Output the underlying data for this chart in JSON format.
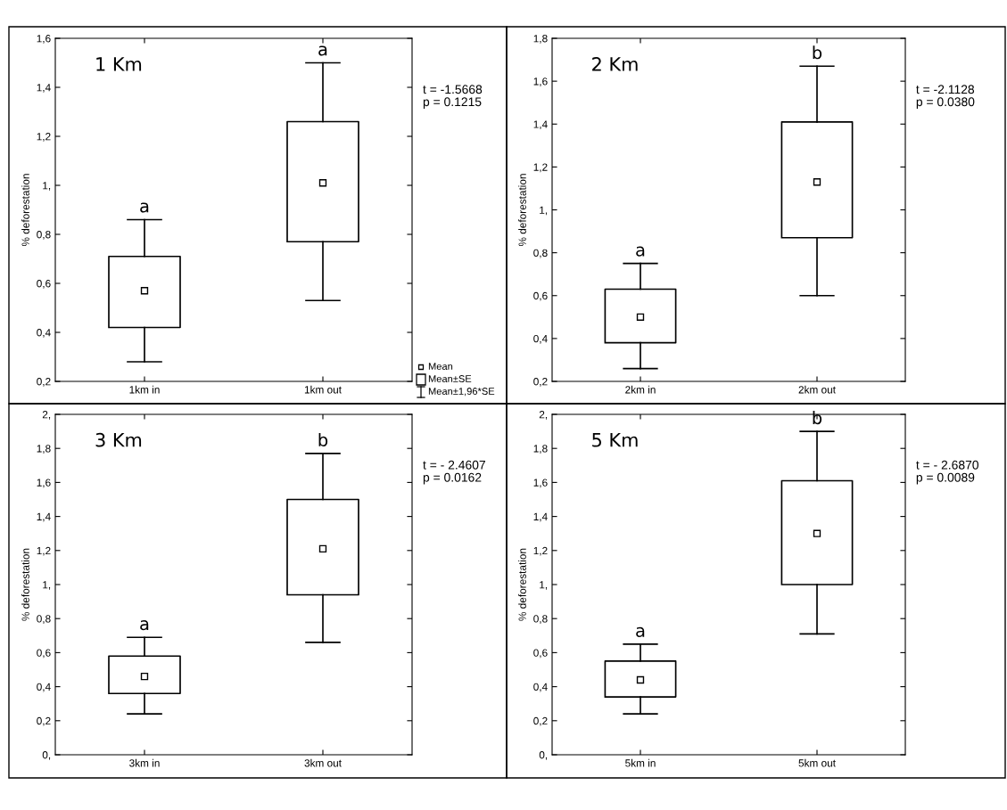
{
  "chart_data": [
    {
      "type": "box",
      "title": "1 Km",
      "ylabel": "% deforestation",
      "categories": [
        "1km in",
        "1km out"
      ],
      "boxes": [
        {
          "low": 0.28,
          "q1": 0.42,
          "mean": 0.57,
          "q3": 0.71,
          "high": 0.86
        },
        {
          "low": 0.53,
          "q1": 0.77,
          "mean": 1.01,
          "q3": 1.26,
          "high": 1.5
        }
      ],
      "ylim": [
        0.2,
        1.6
      ],
      "yticks": [
        {
          "value": 0.2,
          "label": "0,2"
        },
        {
          "value": 0.4,
          "label": "0,4"
        },
        {
          "value": 0.6,
          "label": "0,6"
        },
        {
          "value": 0.8,
          "label": "0,8"
        },
        {
          "value": 1,
          "label": "1,"
        },
        {
          "value": 1.2,
          "label": "1,2"
        },
        {
          "value": 1.4,
          "label": "1,4"
        },
        {
          "value": 1.6,
          "label": "1,6"
        }
      ],
      "annotations": [
        {
          "text": "a",
          "x": "1km in",
          "y": 0.86
        },
        {
          "text": "a",
          "x": "1km out",
          "y": 1.5
        },
        "t = -1.5668\np = 0.1215",
        "Mean",
        "Mean±SE",
        "Mean±1,96*SE"
      ]
    },
    {
      "type": "box",
      "title": "2 Km",
      "ylabel": "% deforestation",
      "categories": [
        "2km in",
        "2km out"
      ],
      "boxes": [
        {
          "low": 0.26,
          "q1": 0.38,
          "mean": 0.5,
          "q3": 0.63,
          "high": 0.75
        },
        {
          "low": 0.6,
          "q1": 0.87,
          "mean": 1.13,
          "q3": 1.41,
          "high": 1.67
        }
      ],
      "ylim": [
        0.2,
        1.8
      ],
      "yticks": [
        {
          "value": 0.2,
          "label": "0,2"
        },
        {
          "value": 0.4,
          "label": "0,4"
        },
        {
          "value": 0.6,
          "label": "0,6"
        },
        {
          "value": 0.8,
          "label": "0,8"
        },
        {
          "value": 1,
          "label": "1,"
        },
        {
          "value": 1.2,
          "label": "1,2"
        },
        {
          "value": 1.4,
          "label": "1,4"
        },
        {
          "value": 1.6,
          "label": "1,6"
        },
        {
          "value": 1.8,
          "label": "1,8"
        }
      ],
      "annotations": [
        {
          "text": "a",
          "x": "2km in",
          "y": 0.75
        },
        {
          "text": "b",
          "x": "2km out",
          "y": 1.67
        },
        "t = -2.1128\np = 0.0380"
      ]
    },
    {
      "type": "box",
      "title": "3 Km",
      "ylabel": "% deforestation",
      "categories": [
        "3km in",
        "3km out"
      ],
      "boxes": [
        {
          "low": 0.24,
          "q1": 0.36,
          "mean": 0.46,
          "q3": 0.58,
          "high": 0.69
        },
        {
          "low": 0.66,
          "q1": 0.94,
          "mean": 1.21,
          "q3": 1.5,
          "high": 1.77
        }
      ],
      "ylim": [
        0,
        2
      ],
      "yticks": [
        {
          "value": 0,
          "label": "0,"
        },
        {
          "value": 0.2,
          "label": "0,2"
        },
        {
          "value": 0.4,
          "label": "0,4"
        },
        {
          "value": 0.6,
          "label": "0,6"
        },
        {
          "value": 0.8,
          "label": "0,8"
        },
        {
          "value": 1,
          "label": "1,"
        },
        {
          "value": 1.2,
          "label": "1,2"
        },
        {
          "value": 1.4,
          "label": "1,4"
        },
        {
          "value": 1.6,
          "label": "1,6"
        },
        {
          "value": 1.8,
          "label": "1,8"
        },
        {
          "value": 2,
          "label": "2,"
        }
      ],
      "annotations": [
        {
          "text": "a",
          "x": "3km in",
          "y": 0.69
        },
        {
          "text": "b",
          "x": "3km out",
          "y": 1.77
        },
        "t = - 2.4607\np = 0.0162"
      ]
    },
    {
      "type": "box",
      "title": "5 Km",
      "ylabel": "% deforestation",
      "categories": [
        "5km in",
        "5km out"
      ],
      "boxes": [
        {
          "low": 0.24,
          "q1": 0.34,
          "mean": 0.44,
          "q3": 0.55,
          "high": 0.65
        },
        {
          "low": 0.71,
          "q1": 1.0,
          "mean": 1.3,
          "q3": 1.61,
          "high": 1.9
        }
      ],
      "ylim": [
        0,
        2
      ],
      "yticks": [
        {
          "value": 0,
          "label": "0,"
        },
        {
          "value": 0.2,
          "label": "0,2"
        },
        {
          "value": 0.4,
          "label": "0,4"
        },
        {
          "value": 0.6,
          "label": "0,6"
        },
        {
          "value": 0.8,
          "label": "0,8"
        },
        {
          "value": 1,
          "label": "1,"
        },
        {
          "value": 1.2,
          "label": "1,2"
        },
        {
          "value": 1.4,
          "label": "1,4"
        },
        {
          "value": 1.6,
          "label": "1,6"
        },
        {
          "value": 1.8,
          "label": "1,8"
        },
        {
          "value": 2,
          "label": "2,"
        }
      ],
      "annotations": [
        {
          "text": "a",
          "x": "5km in",
          "y": 0.65
        },
        {
          "text": "b",
          "x": "5km out",
          "y": 1.9
        },
        "t = - 2.6870\np = 0.0089"
      ]
    }
  ]
}
